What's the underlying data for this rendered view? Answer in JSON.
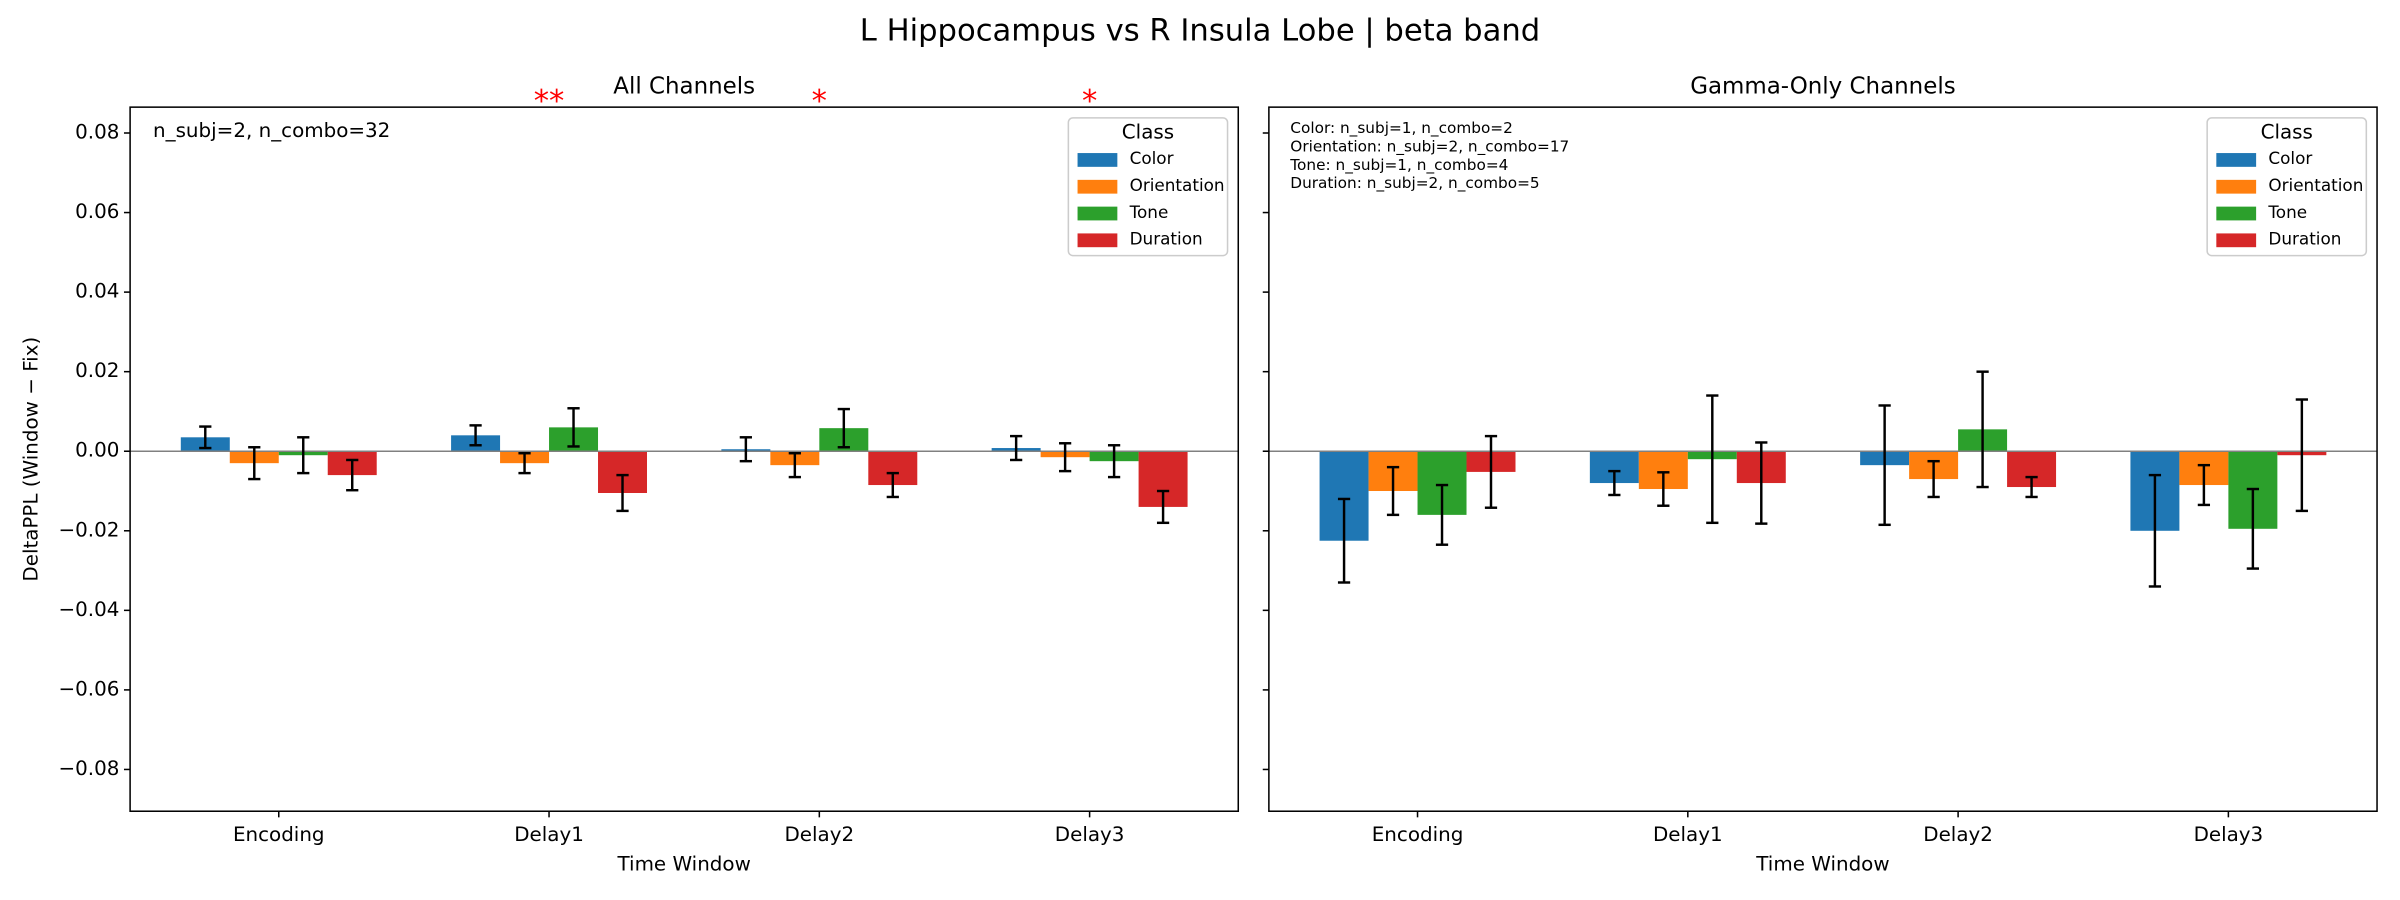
{
  "title": "L Hippocampus vs R Insula Lobe  |  beta band",
  "chart_data": [
    {
      "type": "bar",
      "title": "All Channels",
      "x_label": "Time Window",
      "y_label": "DeltaPPL (Window − Fix)",
      "categories": [
        "Encoding",
        "Delay1",
        "Delay2",
        "Delay3"
      ],
      "significance": [
        null,
        "**",
        "*",
        "*"
      ],
      "annotations": [
        "n_subj=2, n_combo=32"
      ],
      "legend_title": "Class",
      "legend": "upper right",
      "show_ytick_labels": true,
      "ylim": [
        -0.0905,
        0.0865
      ],
      "yticks": [
        {
          "value": -0.08,
          "label": "−0.08"
        },
        {
          "value": -0.06,
          "label": "−0.06"
        },
        {
          "value": -0.04,
          "label": "−0.04"
        },
        {
          "value": -0.02,
          "label": "−0.02"
        },
        {
          "value": 0,
          "label": "0.00"
        },
        {
          "value": 0.02,
          "label": "0.02"
        },
        {
          "value": 0.04,
          "label": "0.04"
        },
        {
          "value": 0.06,
          "label": "0.06"
        },
        {
          "value": 0.08,
          "label": "0.08"
        }
      ],
      "series": [
        {
          "name": "Color",
          "color": "#1f77b4",
          "values": [
            0.0035,
            0.004,
            0.0005,
            0.0008
          ],
          "errors": [
            0.0027,
            0.0025,
            0.003,
            0.003
          ]
        },
        {
          "name": "Orientation",
          "color": "#ff7f0e",
          "values": [
            -0.003,
            -0.003,
            -0.0035,
            -0.0015
          ],
          "errors": [
            0.004,
            0.0025,
            0.003,
            0.0035
          ]
        },
        {
          "name": "Tone",
          "color": "#2ca02c",
          "values": [
            -0.001,
            0.006,
            0.0058,
            -0.0025
          ],
          "errors": [
            0.0045,
            0.0048,
            0.0048,
            0.004
          ]
        },
        {
          "name": "Duration",
          "color": "#d62728",
          "values": [
            -0.006,
            -0.0105,
            -0.0085,
            -0.014
          ],
          "errors": [
            0.0038,
            0.0045,
            0.003,
            0.004
          ]
        }
      ]
    },
    {
      "type": "bar",
      "title": "Gamma-Only Channels",
      "x_label": "Time Window",
      "categories": [
        "Encoding",
        "Delay1",
        "Delay2",
        "Delay3"
      ],
      "annotations": [
        "Color: n_subj=1, n_combo=2",
        "Orientation: n_subj=2, n_combo=17",
        "Tone: n_subj=1, n_combo=4",
        "Duration: n_subj=2, n_combo=5"
      ],
      "legend_title": "Class",
      "legend": "upper right",
      "show_ytick_labels": false,
      "ylim": [
        -0.0905,
        0.0865
      ],
      "yticks": [
        -0.08,
        -0.06,
        -0.04,
        -0.02,
        0,
        0.02,
        0.04,
        0.06,
        0.08
      ],
      "series": [
        {
          "name": "Color",
          "color": "#1f77b4",
          "values": [
            -0.0225,
            -0.008,
            -0.0035,
            -0.02
          ],
          "errors": [
            0.0105,
            0.003,
            0.015,
            0.014
          ]
        },
        {
          "name": "Orientation",
          "color": "#ff7f0e",
          "values": [
            -0.01,
            -0.0095,
            -0.007,
            -0.0085
          ],
          "errors": [
            0.006,
            0.0042,
            0.0045,
            0.005
          ]
        },
        {
          "name": "Tone",
          "color": "#2ca02c",
          "values": [
            -0.016,
            -0.002,
            0.0055,
            -0.0195
          ],
          "errors": [
            0.0075,
            0.016,
            0.0145,
            0.01
          ]
        },
        {
          "name": "Duration",
          "color": "#d62728",
          "values": [
            -0.0052,
            -0.008,
            -0.009,
            -0.001
          ],
          "errors": [
            0.009,
            0.0102,
            0.0025,
            0.014
          ]
        }
      ]
    }
  ]
}
